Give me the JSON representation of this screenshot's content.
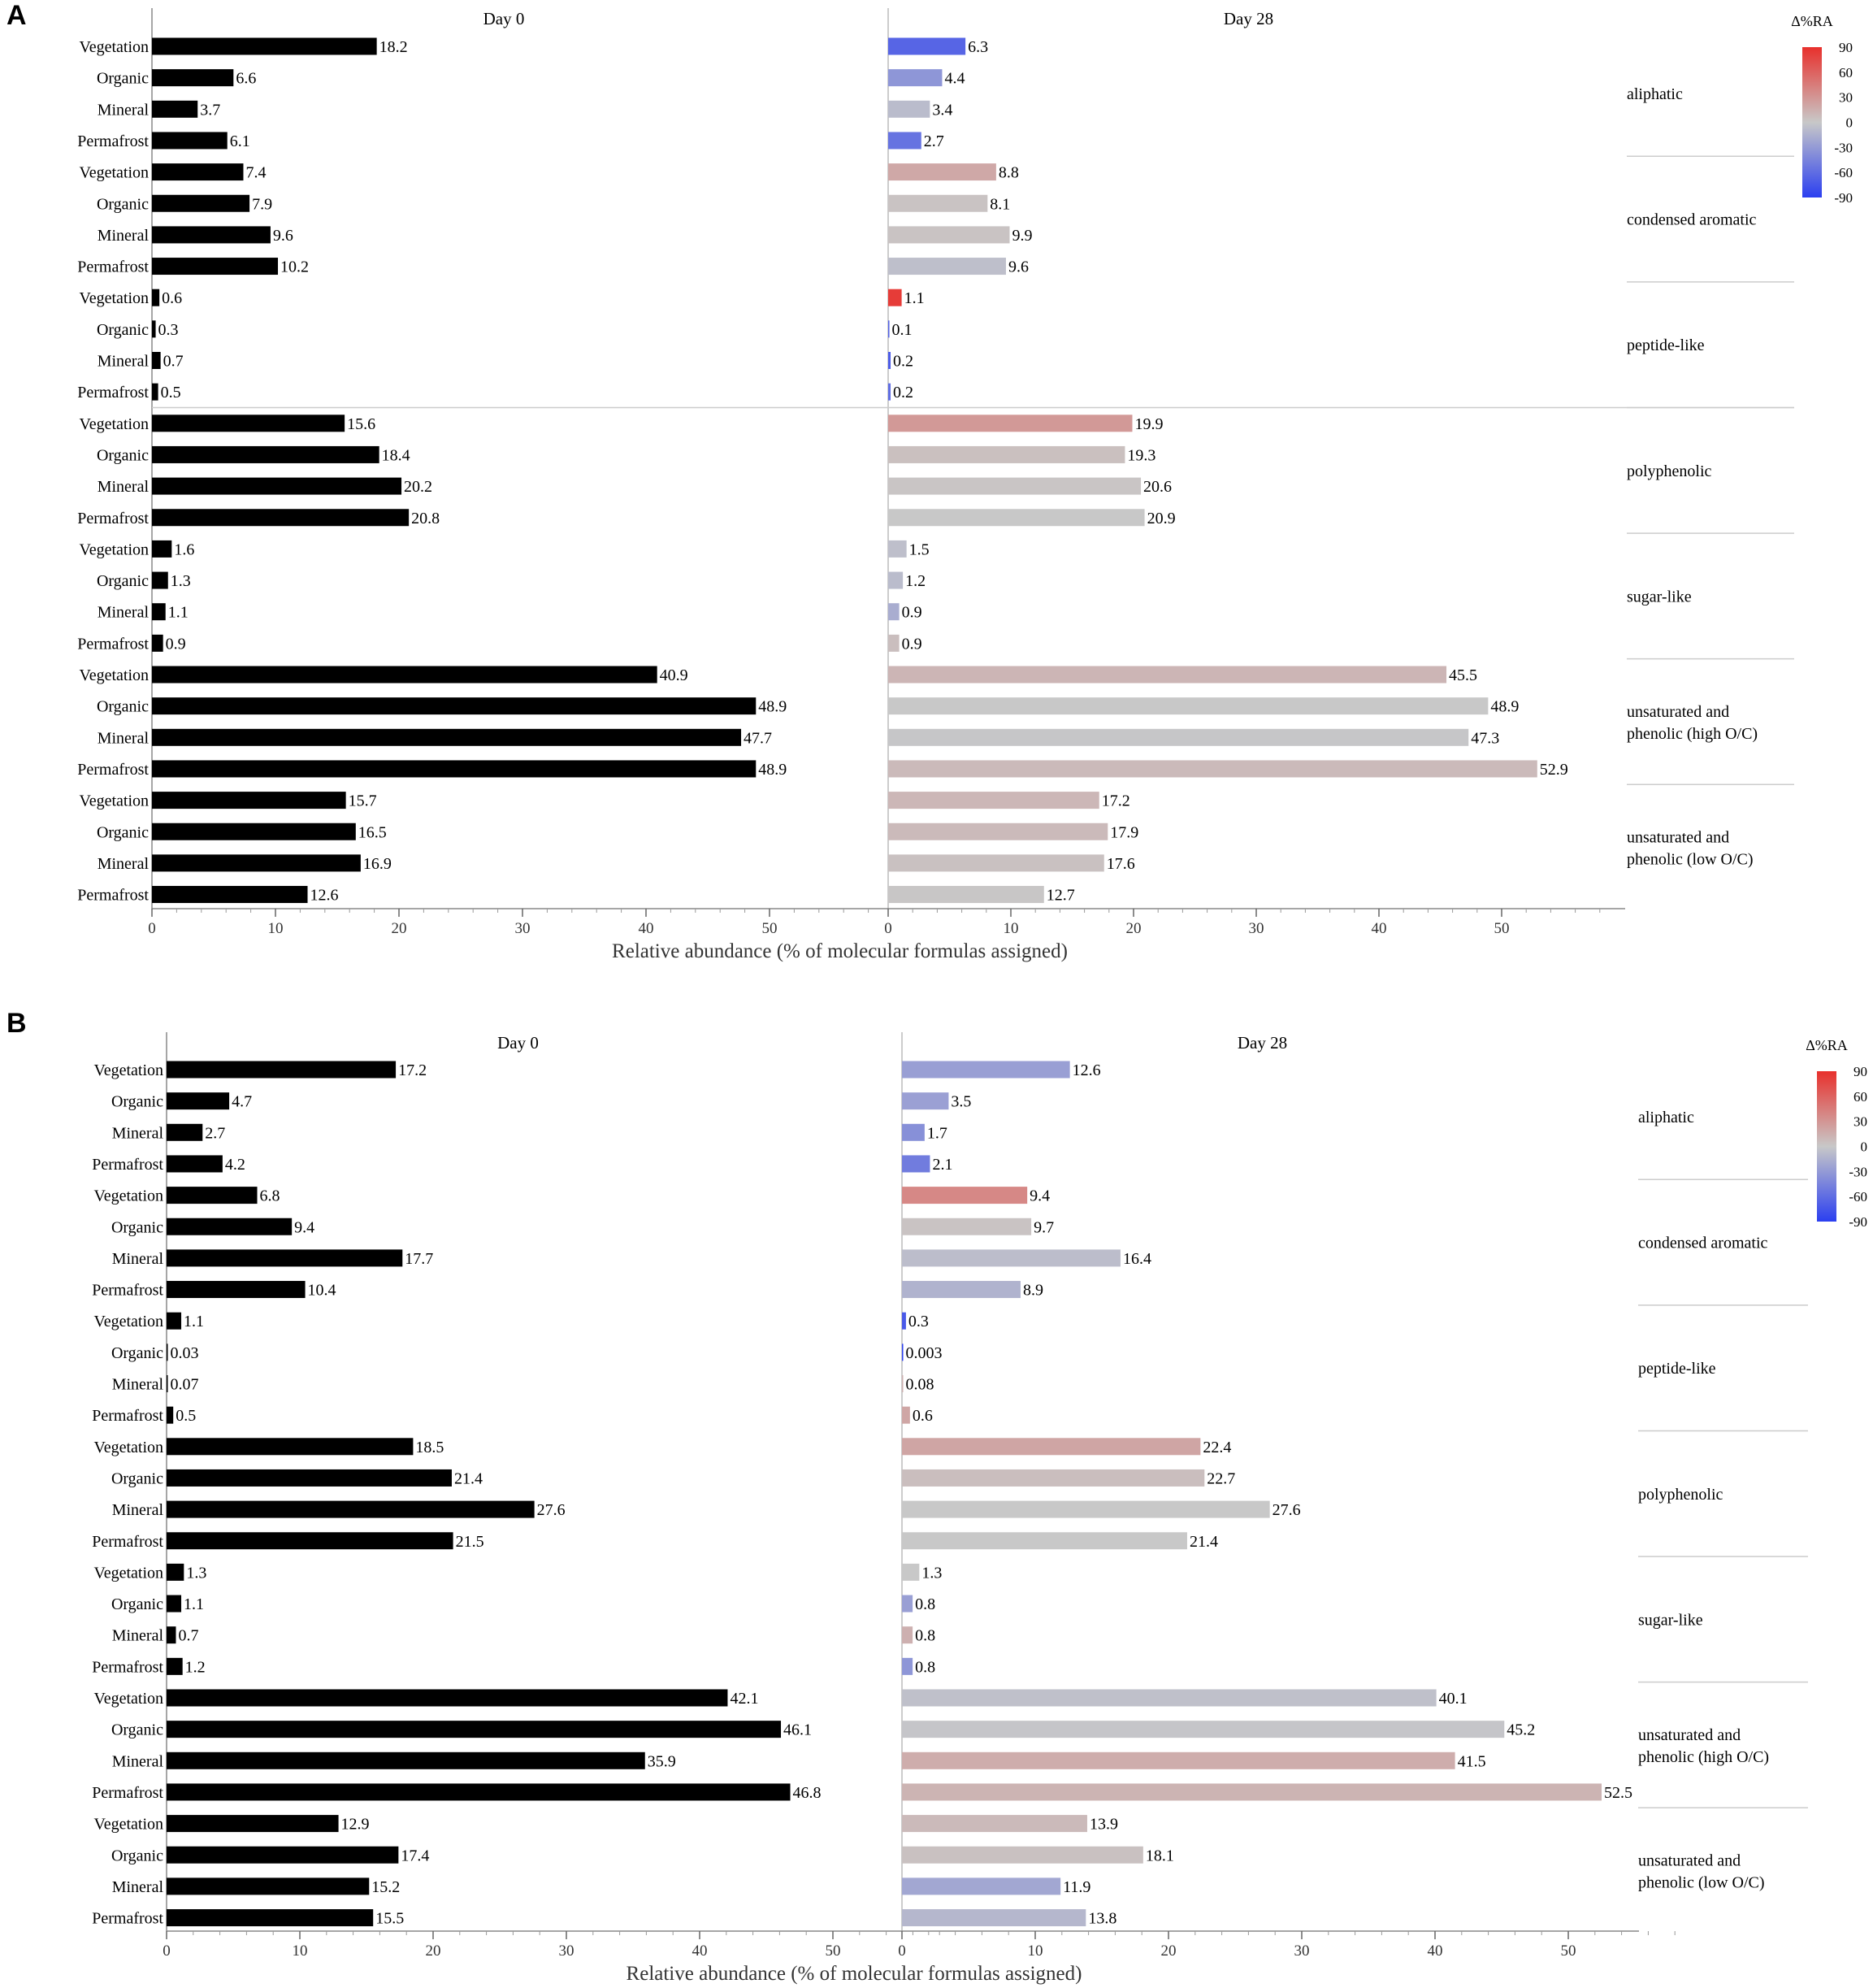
{
  "chart_data": [
    {
      "panel": "A",
      "type": "bar",
      "orientation": "horizontal",
      "xlabel": "Relative abundance (% of molecular formulas assigned)",
      "day0_title": "Day 0",
      "day28_title": "Day 28",
      "xlim": [
        0,
        60
      ],
      "xticks": [
        0,
        10,
        20,
        30,
        40,
        50
      ],
      "legend": {
        "title": "Δ%RA",
        "ticks": [
          90,
          60,
          30,
          0,
          -30,
          -60,
          -90
        ],
        "low_color": "#2b3ff0",
        "mid_color": "#c8c8c8",
        "high_color": "#e8302c",
        "placement": "top-right"
      },
      "groups": [
        {
          "name": "aliphatic",
          "day0": [
            18.2,
            6.6,
            3.7,
            6.1
          ],
          "day0_labels": [
            "18.2",
            "6.6",
            "3.7",
            "6.1"
          ],
          "day28": [
            6.3,
            4.4,
            3.4,
            2.7
          ],
          "day28_labels": [
            "6.3",
            "4.4",
            "3.4",
            "2.7"
          ],
          "delta": [
            -65,
            -33,
            -8,
            -56
          ]
        },
        {
          "name": "condensed aromatic",
          "day0": [
            7.4,
            7.9,
            9.6,
            10.2
          ],
          "day0_labels": [
            "7.4",
            "7.9",
            "9.6",
            "10.2"
          ],
          "day28": [
            8.8,
            8.1,
            9.9,
            9.6
          ],
          "day28_labels": [
            "8.8",
            "8.1",
            "9.9",
            "9.6"
          ],
          "delta": [
            19,
            3,
            3,
            -6
          ]
        },
        {
          "name": "peptide-like",
          "day0": [
            0.6,
            0.3,
            0.7,
            0.5
          ],
          "day0_labels": [
            "0.6",
            "0.3",
            "0.7",
            "0.5"
          ],
          "day28": [
            1.1,
            0.1,
            0.2,
            0.2
          ],
          "day28_labels": [
            "1.1",
            "0.1",
            "0.2",
            "0.2"
          ],
          "delta": [
            83,
            -67,
            -71,
            -60
          ]
        },
        {
          "name": "polyphenolic",
          "day0": [
            15.6,
            18.4,
            20.2,
            20.8
          ],
          "day0_labels": [
            "15.6",
            "18.4",
            "20.2",
            "20.8"
          ],
          "day28": [
            19.9,
            19.3,
            20.6,
            20.9
          ],
          "day28_labels": [
            "19.9",
            "19.3",
            "20.6",
            "20.9"
          ],
          "delta": [
            28,
            5,
            2,
            0
          ]
        },
        {
          "name": "sugar-like",
          "day0": [
            1.6,
            1.3,
            1.1,
            0.9
          ],
          "day0_labels": [
            "1.6",
            "1.3",
            "1.1",
            "0.9"
          ],
          "day28": [
            1.5,
            1.2,
            0.9,
            0.9
          ],
          "day28_labels": [
            "1.5",
            "1.2",
            "0.9",
            "0.9"
          ],
          "delta": [
            -6,
            -8,
            -18,
            6
          ]
        },
        {
          "name": "unsaturated and phenolic (high O/C)",
          "day0": [
            40.9,
            48.9,
            47.7,
            48.9
          ],
          "day0_labels": [
            "40.9",
            "48.9",
            "47.7",
            "48.9"
          ],
          "day28": [
            45.5,
            48.9,
            47.3,
            52.9
          ],
          "day28_labels": [
            "45.5",
            "48.9",
            "47.3",
            "52.9"
          ],
          "delta": [
            11,
            0,
            -1,
            8
          ]
        },
        {
          "name": "unsaturated and phenolic (low O/C)",
          "day0": [
            15.7,
            16.5,
            16.9,
            12.6
          ],
          "day0_labels": [
            "15.7",
            "16.5",
            "16.9",
            "12.6"
          ],
          "day28": [
            17.2,
            17.9,
            17.6,
            12.7
          ],
          "day28_labels": [
            "17.2",
            "17.9",
            "17.6",
            "12.7"
          ],
          "delta": [
            10,
            8,
            4,
            1
          ]
        }
      ],
      "row_labels": [
        "Vegetation",
        "Organic",
        "Mineral",
        "Permafrost"
      ]
    },
    {
      "panel": "B",
      "type": "bar",
      "orientation": "horizontal",
      "xlabel": "Relative abundance (% of molecular formulas assigned)",
      "day0_title": "Day 0",
      "day28_title": "Day 28",
      "xlim": [
        0,
        55
      ],
      "xticks": [
        0,
        10,
        20,
        30,
        40,
        50
      ],
      "legend": {
        "title": "Δ%RA",
        "ticks": [
          90,
          60,
          30,
          0,
          -30,
          -60,
          -90
        ],
        "low_color": "#2b3ff0",
        "mid_color": "#c8c8c8",
        "high_color": "#e8302c",
        "placement": "top-right"
      },
      "groups": [
        {
          "name": "aliphatic",
          "day0": [
            17.2,
            4.7,
            2.7,
            4.2
          ],
          "day0_labels": [
            "17.2",
            "4.7",
            "2.7",
            "4.2"
          ],
          "day28": [
            12.6,
            3.5,
            1.7,
            2.1
          ],
          "day28_labels": [
            "12.6",
            "3.5",
            "1.7",
            "2.1"
          ],
          "delta": [
            -27,
            -26,
            -37,
            -50
          ]
        },
        {
          "name": "condensed aromatic",
          "day0": [
            6.8,
            9.4,
            17.7,
            10.4
          ],
          "day0_labels": [
            "6.8",
            "9.4",
            "17.7",
            "10.4"
          ],
          "day28": [
            9.4,
            9.7,
            16.4,
            8.9
          ],
          "day28_labels": [
            "9.4",
            "9.7",
            "16.4",
            "8.9"
          ],
          "delta": [
            38,
            3,
            -7,
            -14
          ]
        },
        {
          "name": "peptide-like",
          "day0": [
            1.1,
            0.03,
            0.07,
            0.5
          ],
          "day0_labels": [
            "1.1",
            "0.03",
            "0.07",
            "0.5"
          ],
          "day28": [
            0.3,
            0.003,
            0.08,
            0.6
          ],
          "day28_labels": [
            "0.3",
            "0.003",
            "0.08",
            "0.6"
          ],
          "delta": [
            -73,
            -90,
            14,
            20
          ]
        },
        {
          "name": "polyphenolic",
          "day0": [
            18.5,
            21.4,
            27.6,
            21.5
          ],
          "day0_labels": [
            "18.5",
            "21.4",
            "27.6",
            "21.5"
          ],
          "day28": [
            22.4,
            22.7,
            27.6,
            21.4
          ],
          "day28_labels": [
            "22.4",
            "22.7",
            "27.6",
            "21.4"
          ],
          "delta": [
            21,
            6,
            0,
            0
          ]
        },
        {
          "name": "sugar-like",
          "day0": [
            1.3,
            1.1,
            0.7,
            1.2
          ],
          "day0_labels": [
            "1.3",
            "1.1",
            "0.7",
            "1.2"
          ],
          "day28": [
            1.3,
            0.8,
            0.8,
            0.8
          ],
          "day28_labels": [
            "1.3",
            "0.8",
            "0.8",
            "0.8"
          ],
          "delta": [
            0,
            -27,
            14,
            -33
          ]
        },
        {
          "name": "unsaturated and phenolic (high O/C)",
          "day0": [
            42.1,
            46.1,
            35.9,
            46.8
          ],
          "day0_labels": [
            "42.1",
            "46.1",
            "35.9",
            "46.8"
          ],
          "day28": [
            40.1,
            45.2,
            41.5,
            52.5
          ],
          "day28_labels": [
            "40.1",
            "45.2",
            "41.5",
            "52.5"
          ],
          "delta": [
            -5,
            -2,
            16,
            12
          ]
        },
        {
          "name": "unsaturated and phenolic (low O/C)",
          "day0": [
            12.9,
            17.4,
            15.2,
            15.5
          ],
          "day0_labels": [
            "12.9",
            "17.4",
            "15.2",
            "15.5"
          ],
          "day28": [
            13.9,
            18.1,
            11.9,
            13.8
          ],
          "day28_labels": [
            "13.9",
            "18.1",
            "11.9",
            "13.8"
          ],
          "delta": [
            8,
            4,
            -22,
            -11
          ]
        }
      ],
      "row_labels": [
        "Vegetation",
        "Organic",
        "Mineral",
        "Permafrost"
      ]
    }
  ]
}
